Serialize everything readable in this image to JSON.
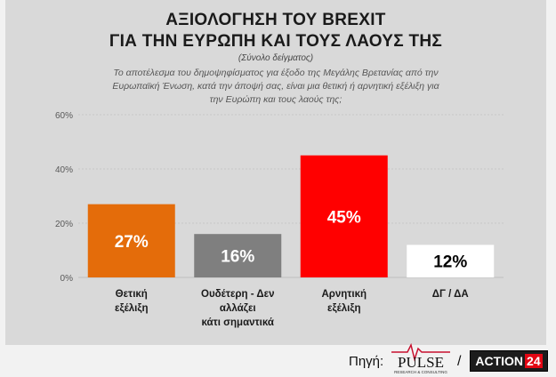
{
  "header": {
    "title_line1": "ΑΞΙΟΛΟΓΗΣΗ ΤΟΥ BREXIT",
    "title_line2": "ΓΙΑ ΤΗΝ ΕΥΡΩΠΗ ΚΑΙ ΤΟΥΣ ΛΑΟΥΣ ΤΗΣ",
    "subtitle": "(Σύνολο δείγματος)",
    "question_line1": "Το αποτέλεσμα του δημοψηφίσματος για έξοδο της Μεγάλης Βρετανίας από την",
    "question_line2": "Ευρωπαϊκή Ένωση, κατά την άποψή σας, είναι μια θετική ή αρνητική εξέλιξη για",
    "question_line3": "την Ευρώπη και τους λαούς της;"
  },
  "chart_data": {
    "type": "bar",
    "categories": [
      [
        "Θετική",
        "εξέλιξη"
      ],
      [
        "Ουδέτερη - Δεν",
        "αλλάζει",
        "κάτι σημαντικά"
      ],
      [
        "Αρνητική",
        "εξέλιξη"
      ],
      [
        "ΔΓ / ΔΑ"
      ]
    ],
    "values": [
      27,
      16,
      45,
      12
    ],
    "value_labels": [
      "27%",
      "16%",
      "45%",
      "12%"
    ],
    "bar_colors": [
      "#e46c0a",
      "#7f7f7f",
      "#ff0000",
      "#ffffff"
    ],
    "label_colors": [
      "#ffffff",
      "#ffffff",
      "#ffffff",
      "#000000"
    ],
    "ylim": [
      0,
      60
    ],
    "yticks": [
      0,
      20,
      40,
      60
    ],
    "ytick_labels": [
      "0%",
      "20%",
      "40%",
      "60%"
    ],
    "grid": true
  },
  "footer": {
    "source_label": "Πηγή:",
    "separator": "/",
    "pulse_logo_text": "PULSE",
    "pulse_logo_subtext": "RESEARCH & CONSULTING",
    "action_logo_text": "ACTION",
    "action_logo_number": "24"
  }
}
